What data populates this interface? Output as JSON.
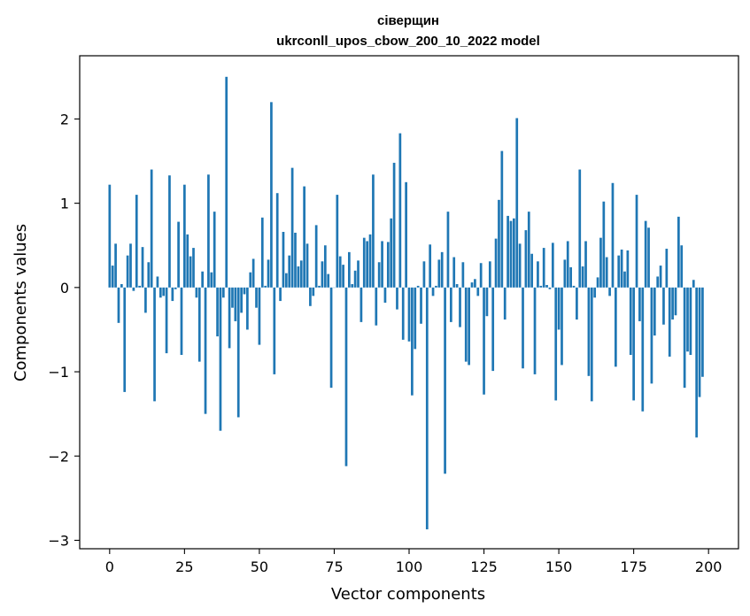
{
  "chart_data": {
    "type": "bar",
    "title": "сіверщин",
    "subtitle": "ukrconll_upos_cbow_200_10_2022 model",
    "xlabel": "Vector components",
    "ylabel": "Components values",
    "xlim": [
      -10,
      210
    ],
    "ylim": [
      -3.1,
      2.75
    ],
    "xticks": [
      0,
      25,
      50,
      75,
      100,
      125,
      150,
      175,
      200
    ],
    "yticks": [
      -3,
      -2,
      -1,
      0,
      1,
      2
    ],
    "ytick_labels": [
      "−3",
      "−2",
      "−1",
      "0",
      "1",
      "2"
    ],
    "grid": false,
    "bar_color": "#1f77b4",
    "values": [
      1.22,
      0.26,
      0.52,
      -0.42,
      0.04,
      -1.24,
      0.38,
      0.52,
      -0.04,
      1.1,
      0.02,
      0.48,
      -0.3,
      0.3,
      1.4,
      -1.35,
      0.13,
      -0.12,
      -0.1,
      -0.78,
      1.33,
      -0.16,
      -0.02,
      0.78,
      -0.8,
      1.22,
      0.63,
      0.37,
      0.47,
      -0.12,
      -0.88,
      0.19,
      -1.5,
      1.34,
      0.18,
      0.9,
      -0.58,
      -1.7,
      -0.12,
      2.5,
      -0.72,
      -0.24,
      -0.4,
      -1.54,
      -0.3,
      -0.08,
      -0.5,
      0.18,
      0.34,
      -0.24,
      -0.68,
      0.83,
      0.02,
      0.33,
      2.2,
      -1.03,
      1.12,
      -0.16,
      0.66,
      0.17,
      0.38,
      1.42,
      0.65,
      0.25,
      0.32,
      1.2,
      0.52,
      -0.22,
      -0.1,
      0.74,
      0.02,
      0.31,
      0.5,
      0.16,
      -1.19,
      0.0,
      1.1,
      0.37,
      0.27,
      -2.12,
      0.42,
      0.04,
      0.2,
      0.32,
      -0.41,
      0.59,
      0.55,
      0.63,
      1.34,
      -0.45,
      0.3,
      0.55,
      -0.18,
      0.54,
      0.82,
      1.48,
      -0.26,
      1.83,
      -0.62,
      1.25,
      -0.64,
      -1.28,
      -0.73,
      0.02,
      -0.43,
      0.31,
      -2.87,
      0.51,
      -0.1,
      0.02,
      0.33,
      0.42,
      -2.21,
      0.9,
      -0.41,
      0.36,
      0.04,
      -0.47,
      0.3,
      -0.88,
      -0.92,
      0.06,
      0.1,
      -0.1,
      0.29,
      -1.27,
      -0.34,
      0.31,
      -0.99,
      0.58,
      1.04,
      1.62,
      -0.38,
      0.85,
      0.79,
      0.82,
      2.01,
      0.52,
      -0.96,
      0.68,
      0.9,
      0.4,
      -1.03,
      0.31,
      0.02,
      0.47,
      0.03,
      -0.02,
      0.53,
      -1.34,
      -0.5,
      -0.92,
      0.33,
      0.55,
      0.24,
      0.02,
      -0.38,
      1.4,
      0.25,
      0.55,
      -1.05,
      -1.35,
      -0.12,
      0.12,
      0.59,
      1.02,
      0.36,
      -0.1,
      1.24,
      -0.94,
      0.38,
      0.45,
      0.19,
      0.44,
      -0.8,
      -1.34,
      1.1,
      -0.4,
      -1.47,
      0.79,
      0.71,
      -1.14,
      -0.57,
      0.13,
      0.26,
      -0.44,
      0.46,
      -0.82,
      -0.38,
      -0.33,
      0.84,
      0.5,
      -1.19,
      -0.76,
      -0.8,
      0.09,
      -1.78,
      -1.3,
      -1.06
    ]
  }
}
